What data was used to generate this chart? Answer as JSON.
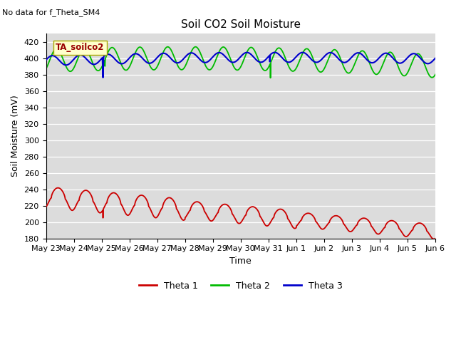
{
  "title": "Soil CO2 Soil Moisture",
  "no_data_text": "No data for f_Theta_SM4",
  "legend_box_text": "TA_soilco2",
  "ylabel": "Soil Moisture (mV)",
  "xlabel": "Time",
  "ylim": [
    180,
    430
  ],
  "yticks": [
    180,
    200,
    220,
    240,
    260,
    280,
    300,
    320,
    340,
    360,
    380,
    400,
    420
  ],
  "x_tick_labels": [
    "May 23",
    "May 24",
    "May 25",
    "May 26",
    "May 27",
    "May 28",
    "May 29",
    "May 30",
    "May 31",
    "Jun 1",
    "Jun 2",
    "Jun 3",
    "Jun 4",
    "Jun 5",
    "Jun 6"
  ],
  "bg_color": "#dcdcdc",
  "line_colors": {
    "theta1": "#cc0000",
    "theta2": "#00bb00",
    "theta3": "#0000cc"
  },
  "legend_labels": [
    "Theta 1",
    "Theta 2",
    "Theta 3"
  ]
}
